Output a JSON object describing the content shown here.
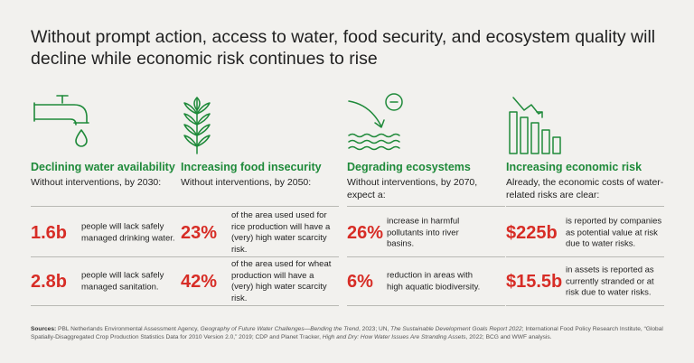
{
  "title": "Without prompt action, access to water, food security, and ecosystem quality will decline while economic risk continues to rise",
  "colors": {
    "accent_green": "#1f8a3a",
    "stat_red": "#d72d26",
    "background": "#f2f1ee"
  },
  "columns": [
    {
      "icon": "faucet-drop-icon",
      "title": "Declining water availability",
      "subtitle": "Without interventions, by 2030:",
      "stats": [
        {
          "value": "1.6b",
          "text": "people will lack safely managed drinking water."
        },
        {
          "value": "2.8b",
          "text": "people will lack safely managed sanitation."
        }
      ]
    },
    {
      "icon": "wheat-icon",
      "title": "Increasing food insecurity",
      "subtitle": "Without interventions, by 2050:",
      "stats": [
        {
          "value": "23%",
          "text": "of the area used used for rice production will have a (very) high water scarcity risk."
        },
        {
          "value": "42%",
          "text": "of the area used for wheat production will have a (very) high water scarcity risk."
        }
      ]
    },
    {
      "icon": "declining-water-waves-icon",
      "title": "Degrading ecosystems",
      "subtitle": "Without interventions, by 2070, expect a:",
      "stats": [
        {
          "value": "26%",
          "text": "increase in harmful pollutants into river basins."
        },
        {
          "value": "6%",
          "text": "reduction in areas with high aquatic biodiversity."
        }
      ]
    },
    {
      "icon": "declining-bar-chart-icon",
      "title": "Increasing economic risk",
      "subtitle": "Already, the economic costs of water-related risks are clear:",
      "stats": [
        {
          "value": "$225b",
          "text": "is reported by companies as potential value at risk due to water risks."
        },
        {
          "value": "$15.5b",
          "text": "in assets is reported as currently stranded or at risk due to water risks."
        }
      ]
    }
  ],
  "sources": {
    "label": "Sources:",
    "p1": " PBL Netherlands Environmental Assessment Agency, ",
    "i1": "Geography of Future Water Challenges—Bending the Trend",
    "p2": ", 2023; UN, ",
    "i2": "The Sustainable Development Goals Report 2022",
    "p3": "; International Food Policy Research Institute, “Global Spatially-Disaggregated Crop Production Statistics Data for 2010 Version 2.0,” 2019; CDP and Planet Tracker, ",
    "i3": "High and Dry: How Water Issues Are Stranding Assets",
    "p4": ", 2022; BCG and WWF analysis."
  }
}
